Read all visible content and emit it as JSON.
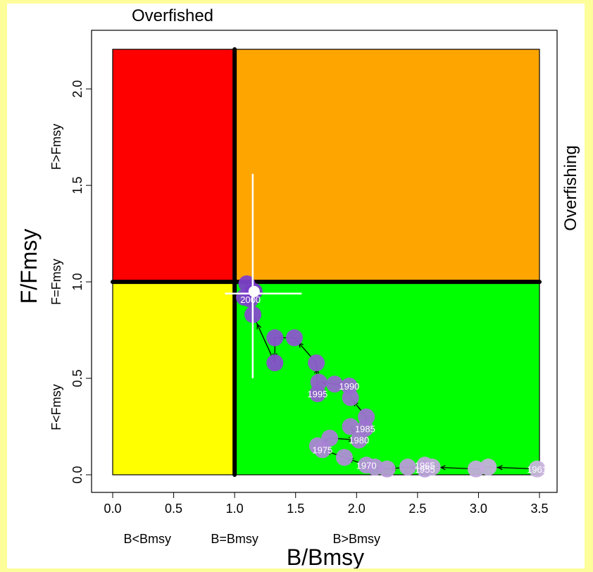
{
  "chart_data": {
    "type": "scatter",
    "xlabel": "B/Bmsy",
    "ylabel": "F/Fmsy",
    "xlim": [
      0,
      3.5
    ],
    "ylim": [
      0,
      2.2
    ],
    "xticks": [
      "0.0",
      "0.5",
      "1.0",
      "1.5",
      "2.0",
      "2.5",
      "3.0",
      "3.5"
    ],
    "yticks": [
      "0.0",
      "0.5",
      "1.0",
      "1.5",
      "2.0"
    ],
    "top_label": "Overfished",
    "right_label": "Overfishing",
    "x_zone_labels": [
      {
        "x": 0.25,
        "text": "B<Bmsy"
      },
      {
        "x": 1.0,
        "text": "B=Bmsy"
      },
      {
        "x": 2.0,
        "text": "B>Bmsy"
      }
    ],
    "y_zone_labels": [
      {
        "y": 0.35,
        "text": "F<Fmsy"
      },
      {
        "y": 1.0,
        "text": "F=Fmsy"
      },
      {
        "y": 1.7,
        "text": "F>Fmsy"
      }
    ],
    "reference_lines": {
      "x": 1.0,
      "y": 1.0
    },
    "quadrants": [
      {
        "name": "overfished-and-overfishing",
        "color": "#ff0000"
      },
      {
        "name": "overfishing",
        "color": "#ffa500"
      },
      {
        "name": "overfished",
        "color": "#ffff00"
      },
      {
        "name": "sustainable",
        "color": "#00ff00"
      }
    ],
    "point_color_early": "#c8b4dc",
    "point_color_late": "#7a3cc8",
    "path_color": "#000000",
    "current_point": {
      "x": 1.16,
      "y": 0.95,
      "x_range": [
        0.92,
        1.55
      ],
      "y_range": [
        0.5,
        1.56
      ],
      "color": "#ffffff"
    },
    "trajectory": [
      {
        "x": 3.48,
        "y": 0.03,
        "label": "1961"
      },
      {
        "x": 3.08,
        "y": 0.04,
        "label": ""
      },
      {
        "x": 2.98,
        "y": 0.03,
        "label": ""
      },
      {
        "x": 2.62,
        "y": 0.04,
        "label": ""
      },
      {
        "x": 2.56,
        "y": 0.05,
        "label": "1965"
      },
      {
        "x": 2.56,
        "y": 0.03,
        "label": "1955"
      },
      {
        "x": 2.42,
        "y": 0.04,
        "label": ""
      },
      {
        "x": 2.25,
        "y": 0.03,
        "label": ""
      },
      {
        "x": 2.15,
        "y": 0.04,
        "label": ""
      },
      {
        "x": 2.08,
        "y": 0.05,
        "label": "1970"
      },
      {
        "x": 1.9,
        "y": 0.09,
        "label": ""
      },
      {
        "x": 1.72,
        "y": 0.13,
        "label": "1975"
      },
      {
        "x": 1.68,
        "y": 0.15,
        "label": ""
      },
      {
        "x": 1.78,
        "y": 0.19,
        "label": ""
      },
      {
        "x": 2.02,
        "y": 0.18,
        "label": "1980"
      },
      {
        "x": 1.95,
        "y": 0.25,
        "label": ""
      },
      {
        "x": 2.07,
        "y": 0.24,
        "label": "1985"
      },
      {
        "x": 2.08,
        "y": 0.3,
        "label": ""
      },
      {
        "x": 1.95,
        "y": 0.4,
        "label": ""
      },
      {
        "x": 1.94,
        "y": 0.46,
        "label": "1990"
      },
      {
        "x": 1.82,
        "y": 0.47,
        "label": ""
      },
      {
        "x": 1.69,
        "y": 0.48,
        "label": ""
      },
      {
        "x": 1.68,
        "y": 0.42,
        "label": "1995"
      },
      {
        "x": 1.67,
        "y": 0.58,
        "label": ""
      },
      {
        "x": 1.49,
        "y": 0.71,
        "label": ""
      },
      {
        "x": 1.33,
        "y": 0.71,
        "label": ""
      },
      {
        "x": 1.33,
        "y": 0.58,
        "label": ""
      },
      {
        "x": 1.15,
        "y": 0.83,
        "label": ""
      },
      {
        "x": 1.13,
        "y": 0.91,
        "label": "2000"
      },
      {
        "x": 1.08,
        "y": 0.92,
        "label": ""
      },
      {
        "x": 1.1,
        "y": 0.99,
        "label": ""
      },
      {
        "x": 1.16,
        "y": 0.95,
        "label": ""
      }
    ]
  }
}
